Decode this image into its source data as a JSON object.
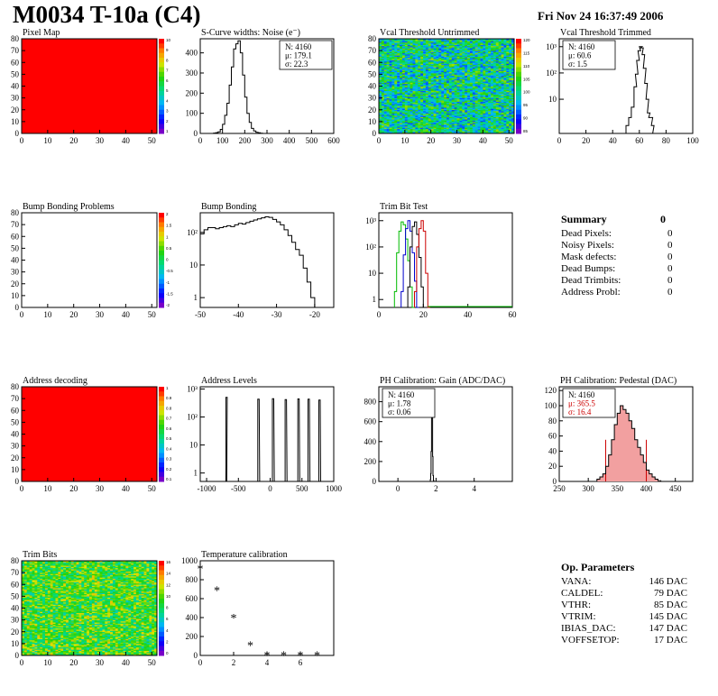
{
  "header": {
    "title": "M0034 T-10a (C4)",
    "date": "Fri Nov 24 16:37:49 2006"
  },
  "summary": {
    "title": "Summary",
    "total": "0",
    "items": [
      {
        "label": "Dead Pixels:",
        "value": "0"
      },
      {
        "label": "Noisy Pixels:",
        "value": "0"
      },
      {
        "label": "Mask defects:",
        "value": "0"
      },
      {
        "label": "Dead Bumps:",
        "value": "0"
      },
      {
        "label": "Dead Trimbits:",
        "value": "0"
      },
      {
        "label": "Address Probl:",
        "value": "0"
      }
    ]
  },
  "op_parameters": {
    "title": "Op. Parameters",
    "items": [
      {
        "label": "VANA:",
        "value": "146 DAC"
      },
      {
        "label": "CALDEL:",
        "value": "79 DAC"
      },
      {
        "label": "VTHR:",
        "value": "85 DAC"
      },
      {
        "label": "VTRIM:",
        "value": "145 DAC"
      },
      {
        "label": "IBIAS_DAC:",
        "value": "147 DAC"
      },
      {
        "label": "VOFFSETOP:",
        "value": "17 DAC"
      }
    ]
  },
  "chart_data": [
    {
      "id": "pixel-map",
      "type": "heatmap",
      "title": "Pixel Map",
      "xlim": [
        0,
        52
      ],
      "ylim": [
        0,
        80
      ],
      "xticks": [
        0,
        10,
        20,
        30,
        40,
        50
      ],
      "yticks": [
        0,
        10,
        20,
        30,
        40,
        50,
        60,
        70,
        80
      ],
      "fill": "uniform",
      "zmax": 10,
      "color": "#ff0000",
      "palette_labels": [
        "10",
        "9",
        "8",
        "7",
        "6",
        "5",
        "4",
        "3",
        "2",
        "1"
      ]
    },
    {
      "id": "scurve-widths",
      "type": "histogram",
      "title": "S-Curve widths: Noise (e⁻)",
      "log": false,
      "xlim": [
        0,
        600
      ],
      "ylim": [
        0,
        470
      ],
      "xticks": [
        0,
        100,
        200,
        300,
        400,
        500,
        600
      ],
      "yticks": [
        0,
        100,
        200,
        300,
        400
      ],
      "x": [
        60,
        70,
        80,
        90,
        100,
        110,
        120,
        130,
        140,
        150,
        160,
        170,
        180,
        190,
        200,
        210,
        220,
        230,
        240,
        250,
        260,
        270,
        280
      ],
      "y": [
        2,
        4,
        8,
        20,
        45,
        90,
        150,
        240,
        330,
        420,
        445,
        460,
        400,
        290,
        180,
        100,
        55,
        25,
        12,
        6,
        3,
        1,
        0
      ],
      "stats": [
        "N: 4160",
        "μ: 179.1",
        "σ: 22.3"
      ]
    },
    {
      "id": "vcal-untrimmed",
      "type": "heatmap",
      "title": "Vcal Threshold Untrimmed",
      "xlim": [
        0,
        52
      ],
      "ylim": [
        0,
        80
      ],
      "xticks": [
        0,
        10,
        20,
        30,
        40,
        50
      ],
      "yticks": [
        0,
        10,
        20,
        30,
        40,
        50,
        60,
        70,
        80
      ],
      "fill": "noise-blue",
      "palette_labels": [
        "120",
        "115",
        "110",
        "105",
        "100",
        "95",
        "90",
        "85"
      ]
    },
    {
      "id": "vcal-trimmed",
      "type": "histogram",
      "title": "Vcal Threshold Trimmed",
      "log": true,
      "xlim": [
        0,
        100
      ],
      "ylim": [
        0.5,
        2000
      ],
      "xticks": [
        0,
        20,
        40,
        60,
        80,
        100
      ],
      "ylog_ticks": [
        10,
        100,
        1000
      ],
      "x": [
        50,
        52,
        54,
        56,
        57,
        58,
        59,
        60,
        61,
        62,
        63,
        64,
        65,
        66,
        67,
        68,
        69,
        70
      ],
      "y": [
        1,
        2,
        5,
        30,
        90,
        300,
        700,
        1000,
        900,
        500,
        150,
        40,
        10,
        3,
        2,
        2,
        1,
        0
      ],
      "stats": [
        "N: 4160",
        "μ: 60.6",
        "σ:  1.5"
      ]
    },
    {
      "id": "bump-problems",
      "type": "heatmap",
      "title": "Bump Bonding Problems",
      "xlim": [
        0,
        52
      ],
      "ylim": [
        0,
        80
      ],
      "xticks": [
        0,
        10,
        20,
        30,
        40,
        50
      ],
      "yticks": [
        0,
        10,
        20,
        30,
        40,
        50,
        60,
        70,
        80
      ],
      "fill": "empty",
      "palette_labels": [
        "2",
        "1.5",
        "1",
        "0.5",
        "0",
        "-0.5",
        "-1",
        "-1.5",
        "-2"
      ]
    },
    {
      "id": "bump-bonding",
      "type": "histogram",
      "title": "Bump Bonding",
      "log": true,
      "xlim": [
        -50,
        -15
      ],
      "ylim": [
        0.5,
        400
      ],
      "xticks": [
        -50,
        -40,
        -30,
        -20
      ],
      "ylog_ticks": [
        1,
        10,
        100
      ],
      "x": [
        -50,
        -49,
        -48,
        -47,
        -46,
        -45,
        -44,
        -43,
        -42,
        -41,
        -40,
        -39,
        -38,
        -37,
        -36,
        -35,
        -34,
        -33,
        -32,
        -31,
        -30,
        -29,
        -28,
        -27,
        -26,
        -25,
        -24,
        -23,
        -22,
        -21,
        -20
      ],
      "y": [
        90,
        120,
        140,
        140,
        130,
        140,
        150,
        160,
        150,
        170,
        190,
        180,
        200,
        220,
        240,
        260,
        280,
        300,
        290,
        250,
        210,
        170,
        120,
        80,
        50,
        30,
        20,
        8,
        3,
        1,
        0
      ],
      "stats": []
    },
    {
      "id": "trim-bit-test",
      "type": "histogram-multi",
      "title": "Trim Bit Test",
      "log": true,
      "xlim": [
        0,
        60
      ],
      "ylim": [
        0.5,
        2000
      ],
      "xticks": [
        0,
        20,
        40,
        60
      ],
      "ylog_ticks": [
        1,
        10,
        100,
        1000
      ],
      "series": [
        {
          "color": "#00bb00",
          "x": [
            7,
            8,
            9,
            10,
            11,
            12,
            13,
            14,
            15
          ],
          "y": [
            2,
            60,
            400,
            900,
            700,
            200,
            30,
            3,
            0
          ]
        },
        {
          "color": "#0000cc",
          "x": [
            10,
            11,
            12,
            13,
            14,
            15,
            16,
            17
          ],
          "y": [
            2,
            50,
            500,
            1000,
            400,
            60,
            5,
            0
          ]
        },
        {
          "color": "#000000",
          "x": [
            13,
            14,
            15,
            16,
            17,
            18,
            19,
            20
          ],
          "y": [
            3,
            100,
            600,
            900,
            300,
            40,
            3,
            0
          ]
        },
        {
          "color": "#cc0000",
          "x": [
            16,
            17,
            18,
            19,
            20,
            21,
            22
          ],
          "y": [
            2,
            100,
            500,
            1000,
            400,
            10,
            0
          ]
        }
      ],
      "stats": []
    },
    {
      "id": "address-decoding",
      "type": "heatmap",
      "title": "Address decoding",
      "xlim": [
        0,
        52
      ],
      "ylim": [
        0,
        80
      ],
      "xticks": [
        0,
        10,
        20,
        30,
        40,
        50
      ],
      "yticks": [
        0,
        10,
        20,
        30,
        40,
        50,
        60,
        70,
        80
      ],
      "fill": "uniform",
      "zmax": 1,
      "color": "#ff0000",
      "palette_labels": [
        "1",
        "0.9",
        "0.8",
        "0.7",
        "0.6",
        "0.5",
        "0.4",
        "0.3",
        "0.2",
        "0.1"
      ]
    },
    {
      "id": "address-levels",
      "type": "spikes",
      "title": "Address Levels",
      "log": true,
      "xlim": [
        -1100,
        1000
      ],
      "ylim": [
        0.5,
        1200
      ],
      "xticks": [
        -1000,
        -500,
        0,
        500,
        1000
      ],
      "ylog_ticks": [
        1,
        10,
        100,
        1000
      ],
      "spikes": [
        {
          "x": -690,
          "h": 500,
          "w": 14
        },
        {
          "x": -180,
          "h": 430,
          "w": 30
        },
        {
          "x": 50,
          "h": 450,
          "w": 30
        },
        {
          "x": 250,
          "h": 420,
          "w": 30
        },
        {
          "x": 450,
          "h": 440,
          "w": 30
        },
        {
          "x": 610,
          "h": 430,
          "w": 30
        },
        {
          "x": 780,
          "h": 400,
          "w": 28
        }
      ]
    },
    {
      "id": "ph-gain",
      "type": "histogram",
      "title": "PH Calibration: Gain (ADC/DAC)",
      "log": false,
      "xlim": [
        -1,
        6
      ],
      "ylim": [
        0,
        950
      ],
      "xticks": [
        0,
        2,
        4
      ],
      "yticks": [
        0,
        200,
        400,
        600,
        800
      ],
      "x": [
        1.7,
        1.72,
        1.74,
        1.76,
        1.78,
        1.8,
        1.82,
        1.84,
        1.86,
        1.88
      ],
      "y": [
        20,
        80,
        300,
        700,
        900,
        650,
        250,
        60,
        10,
        0
      ],
      "stats": [
        "N: 4160",
        "μ: 1.78",
        "σ: 0.06"
      ]
    },
    {
      "id": "ph-pedestal",
      "type": "histogram",
      "title": "PH Calibration: Pedestal (DAC)",
      "log": false,
      "xlim": [
        250,
        480
      ],
      "ylim": [
        0,
        125
      ],
      "xticks": [
        250,
        300,
        350,
        400,
        450
      ],
      "yticks": [
        0,
        20,
        40,
        60,
        80,
        100,
        120
      ],
      "x": [
        315,
        320,
        325,
        330,
        335,
        340,
        345,
        350,
        355,
        360,
        365,
        370,
        375,
        380,
        385,
        390,
        395,
        400,
        405,
        410,
        415,
        420
      ],
      "y": [
        3,
        6,
        10,
        20,
        35,
        55,
        75,
        90,
        100,
        95,
        90,
        80,
        70,
        55,
        45,
        35,
        25,
        15,
        10,
        6,
        3,
        1
      ],
      "markers": [
        330,
        400
      ],
      "stats": [
        "N: 4160",
        "μ: 365.5",
        "σ: 16.4"
      ],
      "stats_colors": [
        "#000000",
        "#cc0000",
        "#cc0000"
      ]
    },
    {
      "id": "trim-bits",
      "type": "heatmap",
      "title": "Trim Bits",
      "xlim": [
        0,
        52
      ],
      "ylim": [
        0,
        80
      ],
      "xticks": [
        0,
        10,
        20,
        30,
        40,
        50
      ],
      "yticks": [
        0,
        10,
        20,
        30,
        40,
        50,
        60,
        70,
        80
      ],
      "fill": "noise-green",
      "palette_labels": [
        "16",
        "14",
        "12",
        "10",
        "8",
        "6",
        "4",
        "2",
        "0"
      ]
    },
    {
      "id": "temperature",
      "type": "scatter",
      "title": "Temperature calibration",
      "log": false,
      "xlim": [
        0,
        8
      ],
      "ylim": [
        0,
        1000
      ],
      "xticks": [
        0,
        2,
        4,
        6
      ],
      "yticks": [
        0,
        200,
        400,
        600,
        800,
        1000
      ],
      "x": [
        0,
        1,
        2,
        3,
        4,
        5,
        6,
        7
      ],
      "y": [
        920,
        690,
        400,
        110,
        5,
        5,
        5,
        5
      ],
      "stats": []
    }
  ]
}
